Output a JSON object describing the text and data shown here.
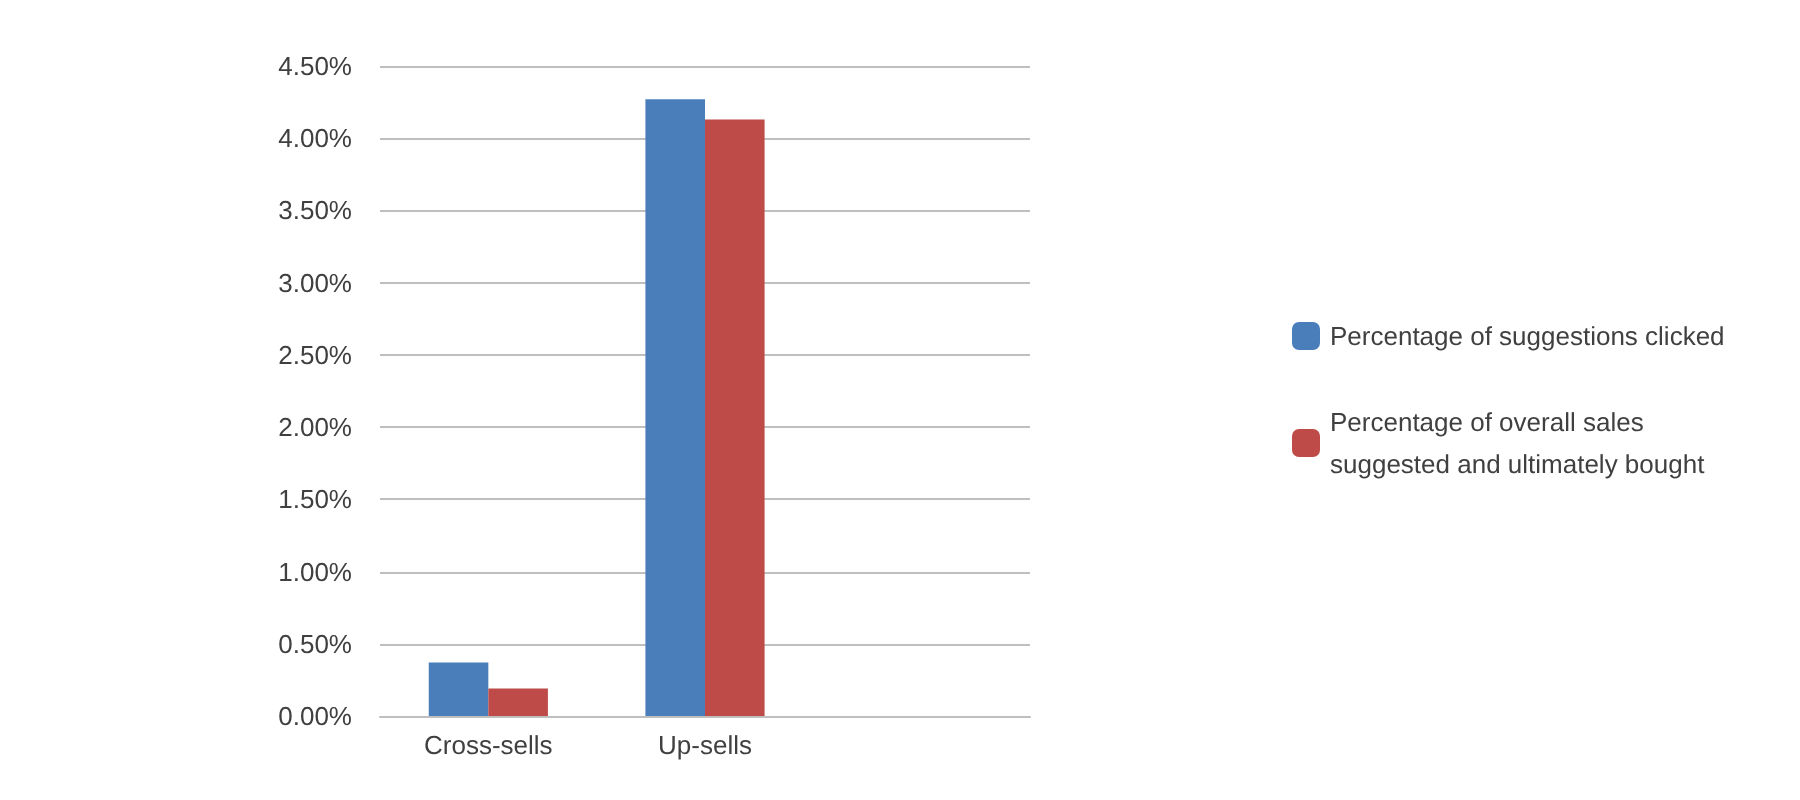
{
  "chart_data": {
    "type": "bar",
    "categories": [
      "Cross-sells",
      "Up-sells",
      null
    ],
    "series": [
      {
        "name": "Percentage of suggestions clicked",
        "color": "#4a7ebb",
        "values": [
          0.37,
          4.27,
          null
        ]
      },
      {
        "name": "Percentage of overall sales suggested and ultimately bought",
        "color": "#be4b48",
        "values": [
          0.19,
          4.13,
          null
        ]
      }
    ],
    "ylim": [
      0,
      4.5
    ],
    "yticks": [
      {
        "value": 0,
        "label": "0.00%"
      },
      {
        "value": 0.5,
        "label": "0.50%"
      },
      {
        "value": 1,
        "label": "1.00%"
      },
      {
        "value": 1.5,
        "label": "1.50%"
      },
      {
        "value": 2,
        "label": "2.00%"
      },
      {
        "value": 2.5,
        "label": "2.50%"
      },
      {
        "value": 3,
        "label": "3.00%"
      },
      {
        "value": 3.5,
        "label": "3.50%"
      },
      {
        "value": 4,
        "label": "4.00%"
      },
      {
        "value": 4.5,
        "label": "4.50%"
      }
    ],
    "grid": "y",
    "legend": "right"
  }
}
